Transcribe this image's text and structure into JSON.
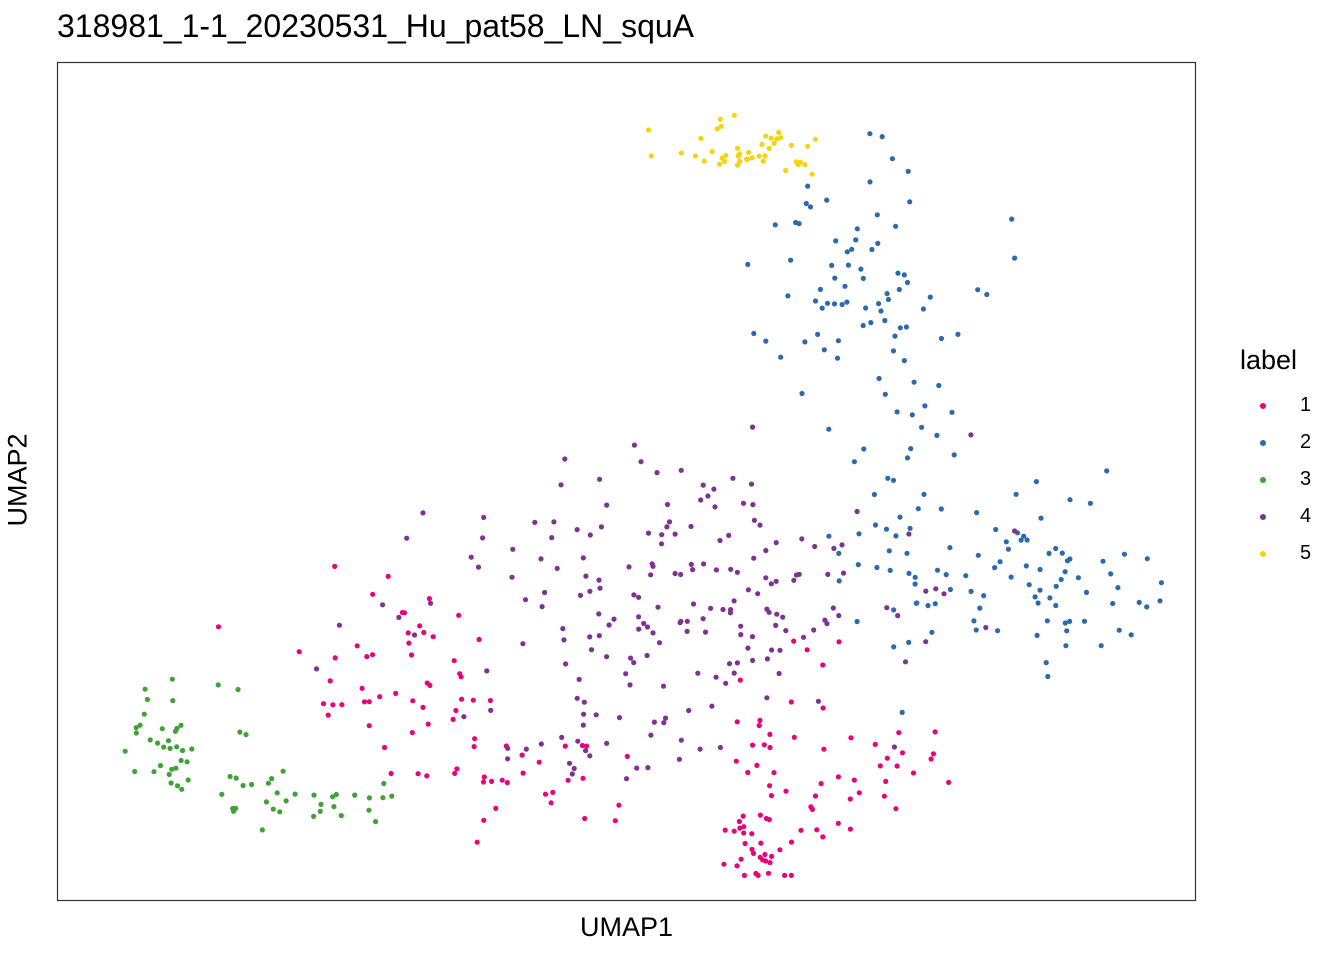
{
  "chart_data": {
    "type": "scatter",
    "title": "318981_1-1_20230531_Hu_pat58_LN_squA",
    "xlabel": "UMAP1",
    "ylabel": "UMAP2",
    "xlim": [
      0,
      100
    ],
    "ylim": [
      0,
      100
    ],
    "axis_ticks": false,
    "grid": false,
    "legend": {
      "title": "label",
      "position": "right",
      "entries": [
        {
          "name": "1",
          "color": "#E7037A"
        },
        {
          "name": "2",
          "color": "#2B6AAE"
        },
        {
          "name": "3",
          "color": "#3FA235"
        },
        {
          "name": "4",
          "color": "#7F3292"
        },
        {
          "name": "5",
          "color": "#F5D40B"
        }
      ]
    },
    "clusters": [
      {
        "name": "1",
        "color": "#E7037A",
        "n": 160,
        "seed": 11,
        "regions": [
          {
            "cx": 17,
            "cy": 33,
            "sx": 3.5,
            "sy": 5,
            "w": 0.06
          },
          {
            "cx": 27,
            "cy": 28,
            "sx": 3.5,
            "sy": 5,
            "w": 0.18
          },
          {
            "cx": 35,
            "cy": 23,
            "sx": 4,
            "sy": 6,
            "w": 0.15
          },
          {
            "cx": 42,
            "cy": 15,
            "sx": 5,
            "sy": 3.5,
            "w": 0.12
          },
          {
            "cx": 61,
            "cy": 6.5,
            "sx": 1.8,
            "sy": 3,
            "w": 0.2
          },
          {
            "cx": 63,
            "cy": 18,
            "sx": 3,
            "sy": 6,
            "w": 0.14
          },
          {
            "cx": 71,
            "cy": 16,
            "sx": 4,
            "sy": 6,
            "w": 0.15
          }
        ]
      },
      {
        "name": "2",
        "color": "#2B6AAE",
        "n": 190,
        "seed": 23,
        "regions": [
          {
            "cx": 70,
            "cy": 74,
            "sx": 4.5,
            "sy": 7,
            "w": 0.33
          },
          {
            "cx": 76,
            "cy": 62,
            "sx": 3,
            "sy": 5,
            "w": 0.12
          },
          {
            "cx": 85,
            "cy": 37,
            "sx": 6.5,
            "sy": 5,
            "w": 0.43
          },
          {
            "cx": 72,
            "cy": 44,
            "sx": 3,
            "sy": 4,
            "w": 0.12
          }
        ]
      },
      {
        "name": "3",
        "color": "#3FA235",
        "n": 70,
        "seed": 37,
        "regions": [
          {
            "cx": 9,
            "cy": 19,
            "sx": 2,
            "sy": 3,
            "w": 0.45
          },
          {
            "cx": 15,
            "cy": 23,
            "sx": 1.5,
            "sy": 4,
            "w": 0.15
          },
          {
            "cx": 21,
            "cy": 12,
            "sx": 4,
            "sy": 1.5,
            "w": 0.4
          }
        ]
      },
      {
        "name": "4",
        "color": "#7F3292",
        "n": 205,
        "seed": 53,
        "regions": [
          {
            "cx": 54,
            "cy": 37,
            "sx": 11,
            "sy": 8,
            "w": 0.85
          },
          {
            "cx": 48,
            "cy": 18,
            "sx": 5,
            "sy": 3,
            "w": 0.15
          }
        ]
      },
      {
        "name": "5",
        "color": "#F5D40B",
        "n": 45,
        "seed": 71,
        "regions": [
          {
            "cx": 61,
            "cy": 89.5,
            "sx": 3.5,
            "sy": 2,
            "w": 1.0
          }
        ]
      }
    ]
  }
}
